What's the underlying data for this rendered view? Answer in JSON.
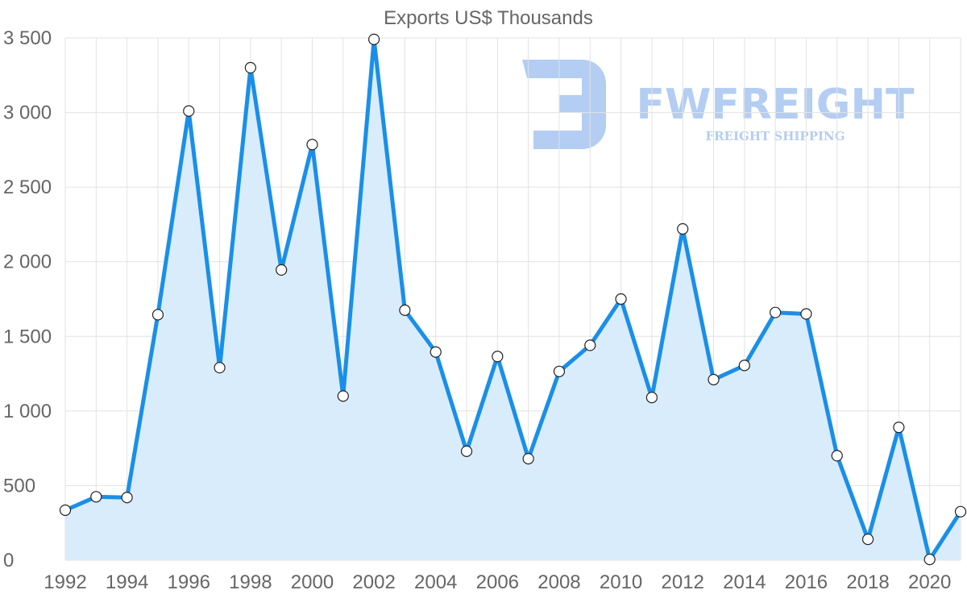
{
  "colors": {
    "line": "#1a8fe8",
    "area": "#d9ecfb",
    "watermark": "#b3cdf3"
  },
  "watermark": {
    "name": "FWFREIGHT",
    "tagline": "FREIGHT SHIPPING"
  },
  "chart_data": {
    "type": "area",
    "title": "Exports US$ Thousands",
    "xlabel": "",
    "ylabel": "",
    "x": [
      1992,
      1993,
      1994,
      1995,
      1996,
      1997,
      1998,
      1999,
      2000,
      2001,
      2002,
      2003,
      2004,
      2005,
      2006,
      2007,
      2008,
      2009,
      2010,
      2011,
      2012,
      2013,
      2014,
      2015,
      2016,
      2017,
      2018,
      2019,
      2020,
      2021
    ],
    "series": [
      {
        "name": "Exports US$ Thousands",
        "values": [
          335,
          425,
          420,
          1645,
          3010,
          1290,
          3300,
          1945,
          2785,
          1100,
          3490,
          1675,
          1395,
          730,
          1365,
          680,
          1265,
          1440,
          1750,
          1090,
          2220,
          1210,
          1305,
          1660,
          1650,
          700,
          140,
          890,
          5,
          325
        ]
      }
    ],
    "x_tick_labels": [
      "1992",
      "1994",
      "1996",
      "1998",
      "2000",
      "2002",
      "2004",
      "2006",
      "2008",
      "2010",
      "2012",
      "2014",
      "2016",
      "2018",
      "2020"
    ],
    "y_tick_values": [
      0,
      500,
      1000,
      1500,
      2000,
      2500,
      3000,
      3500
    ],
    "y_tick_labels": [
      "0",
      "500",
      "1 000",
      "1 500",
      "2 000",
      "2 500",
      "3 000",
      "3 500"
    ],
    "xlim": [
      1992,
      2021
    ],
    "ylim": [
      0,
      3500
    ],
    "grid": true,
    "legend": "none"
  }
}
